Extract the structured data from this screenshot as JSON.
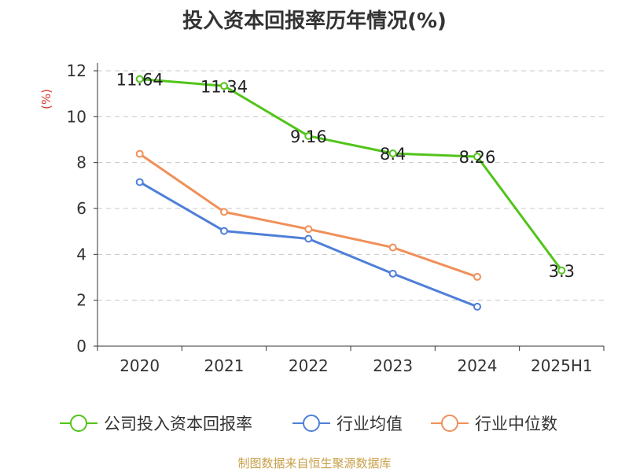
{
  "chart_data": {
    "type": "line",
    "title": "投入资本回报率历年情况(%)",
    "ylabel": "(%)",
    "xlabel": "",
    "categories": [
      "2020",
      "2021",
      "2022",
      "2023",
      "2024",
      "2025H1"
    ],
    "ylim": [
      0,
      12
    ],
    "yticks": [
      "0",
      "2",
      "4",
      "6",
      "8",
      "10",
      "12"
    ],
    "grid": "horizontal-dashed",
    "legend_position": "bottom",
    "series": [
      {
        "name": "公司投入资本回报率",
        "color": "#52c41a",
        "values": [
          11.64,
          11.34,
          9.16,
          8.4,
          8.26,
          3.3
        ],
        "labels": [
          "11.64",
          "11.34",
          "9.16",
          "8.4",
          "8.26",
          "3.3"
        ]
      },
      {
        "name": "行业均值",
        "color": "#4f7fd8",
        "values": [
          7.15,
          5.02,
          4.68,
          3.16,
          1.72,
          null
        ]
      },
      {
        "name": "行业中位数",
        "color": "#f0905a",
        "values": [
          8.38,
          5.85,
          5.1,
          4.3,
          3.02,
          null
        ]
      }
    ]
  },
  "source": "制图数据来自恒生聚源数据库"
}
